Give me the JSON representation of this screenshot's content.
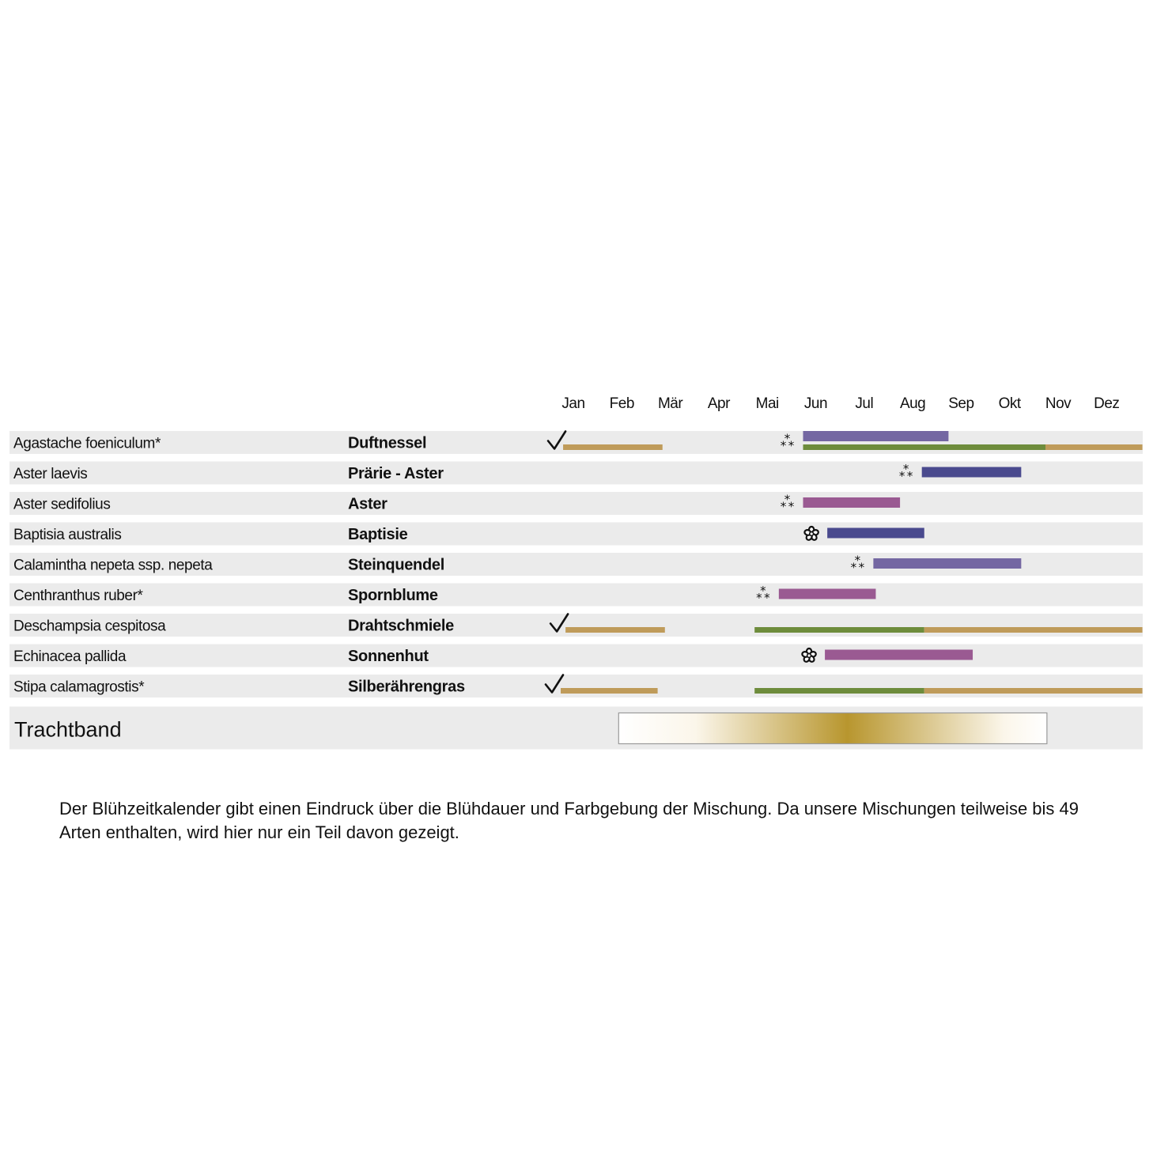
{
  "colors": {
    "row_bg": "#ebebeb",
    "beige": "#bf9b5a",
    "green": "#6e8c3c",
    "violet": "#7467a2",
    "blue": "#4a4a8e",
    "purple": "#9a5a92",
    "gold": "#b8962e"
  },
  "chart_data": {
    "type": "bloom-calendar",
    "months": [
      "Jan",
      "Feb",
      "Mär",
      "Apr",
      "Mai",
      "Jun",
      "Jul",
      "Aug",
      "Sep",
      "Okt",
      "Nov",
      "Dez"
    ],
    "rows": [
      {
        "latin": "Agastache foeniculum*",
        "common": "Duftnessel",
        "icon": "asterism",
        "bars": [
          {
            "start": 0.05,
            "end": 2.1,
            "color": "beige",
            "level": "low",
            "icon": "checkmark"
          },
          {
            "start": 5.0,
            "end": 8.0,
            "color": "violet",
            "level": "high"
          },
          {
            "start": 5.0,
            "end": 10.0,
            "color": "green",
            "level": "low"
          },
          {
            "start": 10.0,
            "end": 12.0,
            "color": "beige",
            "level": "low"
          }
        ]
      },
      {
        "latin": "Aster laevis",
        "common": "Prärie - Aster",
        "icon": "asterism",
        "bars": [
          {
            "start": 7.45,
            "end": 9.5,
            "color": "blue",
            "level": "mid"
          }
        ]
      },
      {
        "latin": "Aster sedifolius",
        "common": "Aster",
        "icon": "asterism",
        "bars": [
          {
            "start": 5.0,
            "end": 7.0,
            "color": "purple",
            "level": "mid"
          }
        ]
      },
      {
        "latin": "Baptisia australis",
        "common": "Baptisie",
        "icon": "flower",
        "bars": [
          {
            "start": 5.5,
            "end": 7.5,
            "color": "blue",
            "level": "mid"
          }
        ]
      },
      {
        "latin": "Calamintha nepeta ssp. nepeta",
        "common": "Steinquendel",
        "icon": "asterism",
        "bars": [
          {
            "start": 6.45,
            "end": 9.5,
            "color": "violet",
            "level": "mid"
          }
        ]
      },
      {
        "latin": "Centhranthus ruber*",
        "common": "Spornblume",
        "icon": "asterism",
        "bars": [
          {
            "start": 4.5,
            "end": 6.5,
            "color": "purple",
            "level": "mid"
          }
        ]
      },
      {
        "latin": "Deschampsia cespitosa",
        "common": "Drahtschmiele",
        "bars": [
          {
            "start": 0.1,
            "end": 2.15,
            "color": "beige",
            "level": "low",
            "icon": "checkmark"
          },
          {
            "start": 4.0,
            "end": 7.5,
            "color": "green",
            "level": "low"
          },
          {
            "start": 7.5,
            "end": 12.0,
            "color": "beige",
            "level": "low"
          }
        ]
      },
      {
        "latin": "Echinacea pallida",
        "common": "Sonnenhut",
        "icon": "flower",
        "bars": [
          {
            "start": 5.45,
            "end": 8.5,
            "color": "purple",
            "level": "mid"
          }
        ]
      },
      {
        "latin": "Stipa calamagrostis*",
        "common": "Silberährengras",
        "bars": [
          {
            "start": 0.0,
            "end": 2.0,
            "color": "beige",
            "level": "low",
            "icon": "checkmark"
          },
          {
            "start": 4.0,
            "end": 7.5,
            "color": "green",
            "level": "low"
          },
          {
            "start": 7.5,
            "end": 12.0,
            "color": "beige",
            "level": "low"
          }
        ]
      }
    ],
    "trachtband": {
      "label": "Trachtband",
      "start": 1.0,
      "end": 9.9,
      "peak": 5.75
    }
  },
  "caption": "Der Blühzeitkalender gibt einen Eindruck über die Blühdauer und Farbgebung der Mischung. Da unsere Mischungen teilweise bis 49 Arten enthalten, wird hier nur ein Teil davon gezeigt."
}
